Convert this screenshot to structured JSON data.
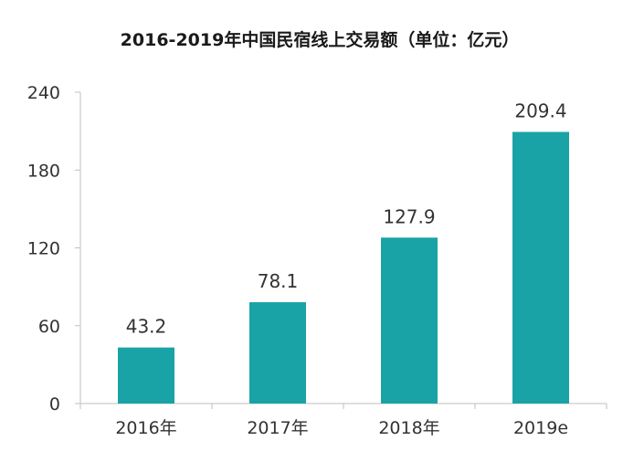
{
  "chart_data": {
    "type": "bar",
    "title": "2016-2019年中国民宿线上交易额（单位：亿元）",
    "categories": [
      "2016年",
      "2017年",
      "2018年",
      "2019e"
    ],
    "values": [
      43.2,
      78.1,
      127.9,
      209.4
    ],
    "value_labels": [
      "43.2",
      "78.1",
      "127.9",
      "209.4"
    ],
    "ylim": [
      0,
      240
    ],
    "yticks": [
      0,
      60,
      120,
      180,
      240
    ],
    "ytick_labels": [
      "0",
      "60",
      "120",
      "180",
      "240"
    ],
    "grid": false,
    "legend": "none",
    "bar_color": "#19a3a6"
  }
}
